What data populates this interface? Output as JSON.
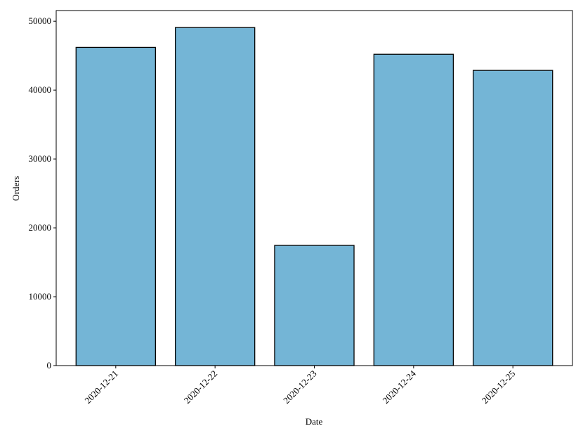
{
  "chart_data": {
    "type": "bar",
    "x_label": "Date",
    "y_label": "Orders",
    "categories": [
      "2020-12-21",
      "2020-12-22",
      "2020-12-23",
      "2020-12-24",
      "2020-12-25"
    ],
    "values": [
      46200,
      49080,
      17450,
      45200,
      42860
    ],
    "color": "#74b5d6",
    "edge_color": "#000000",
    "ylim": [
      0,
      51550
    ],
    "yticks": [
      0,
      10000,
      20000,
      30000,
      40000,
      50000
    ],
    "grid": false
  }
}
